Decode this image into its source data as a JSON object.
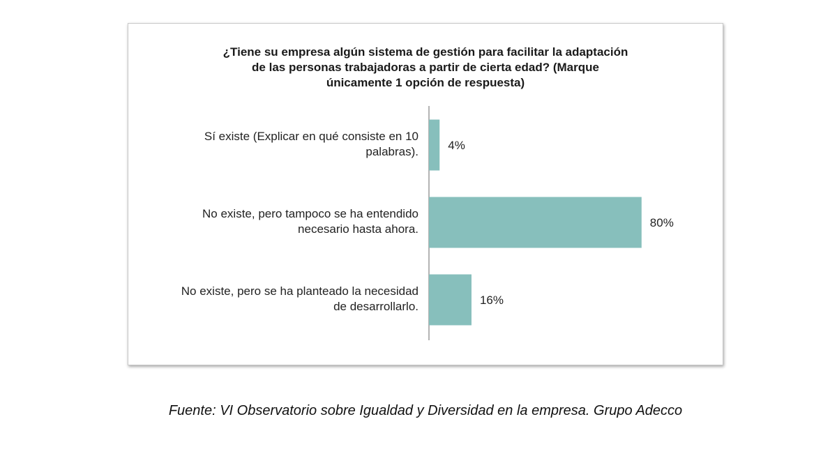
{
  "chart_data": {
    "type": "bar",
    "orientation": "horizontal",
    "title_lines": [
      "¿Tiene su empresa algún sistema de gestión para facilitar la adaptación",
      "de las personas trabajadoras a partir de cierta edad? (Marque",
      "únicamente 1 opción de respuesta)"
    ],
    "categories": [
      {
        "lines": [
          "Sí existe (Explicar en qué consiste en 10",
          "palabras)."
        ]
      },
      {
        "lines": [
          "No existe, pero tampoco se ha entendido",
          "necesario hasta ahora."
        ]
      },
      {
        "lines": [
          "No existe, pero se ha planteado la necesidad",
          "de desarrollarlo."
        ]
      }
    ],
    "values": [
      4,
      80,
      16
    ],
    "data_labels": [
      "4%",
      "80%",
      "16%"
    ],
    "xlim": [
      0,
      100
    ],
    "bar_color": "#87bfbc",
    "axis_color": "#9a9a9a",
    "grid": false,
    "legend": "none"
  },
  "source_text": "Fuente: VI Observatorio sobre Igualdad y Diversidad en la empresa. Grupo Adecco"
}
